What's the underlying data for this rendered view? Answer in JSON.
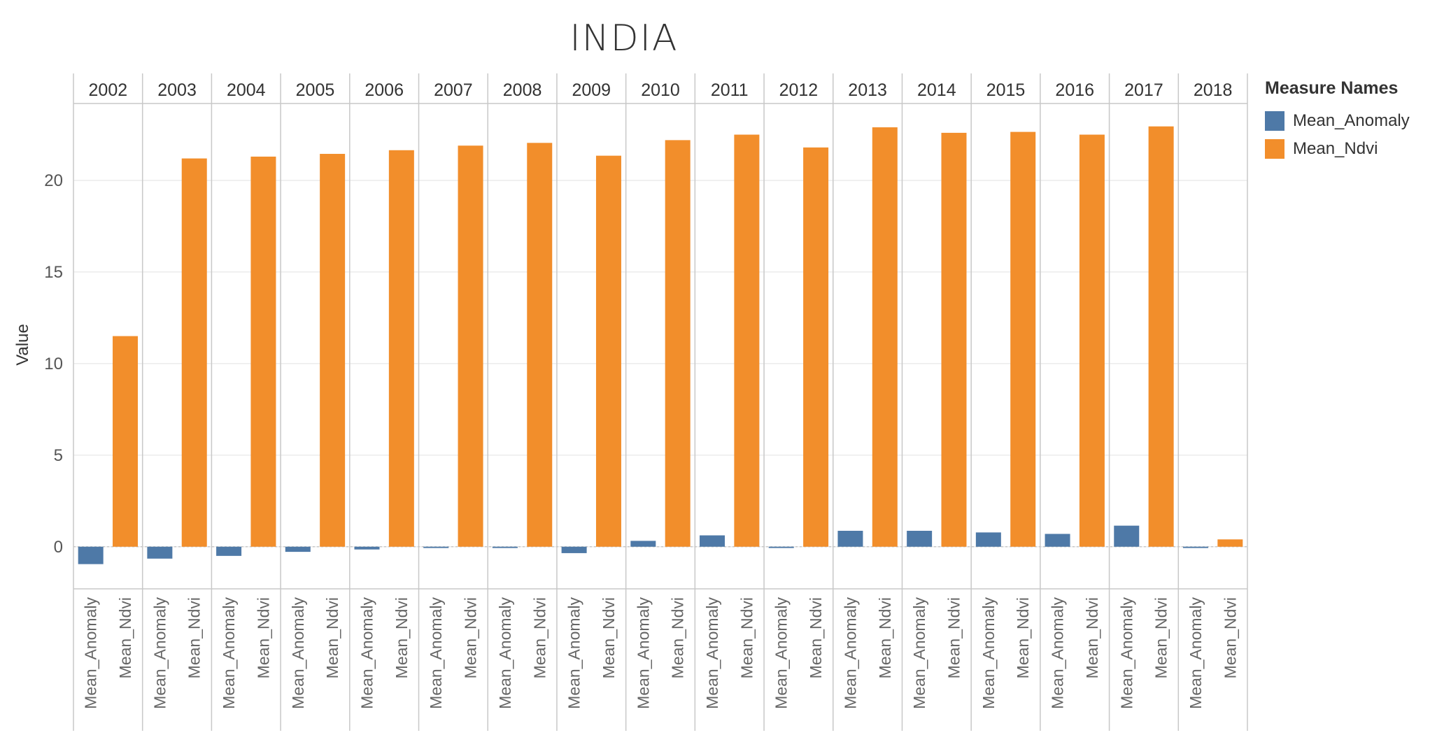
{
  "chart_data": {
    "type": "bar",
    "title": "INDIA",
    "ylabel": "Value",
    "xlabel": "",
    "ylim": [
      -2.3,
      24.2
    ],
    "yticks": [
      0,
      5,
      10,
      15,
      20
    ],
    "grid": true,
    "legend_title": "Measure Names",
    "legend_position": "right",
    "categories": [
      "2002",
      "2003",
      "2004",
      "2005",
      "2006",
      "2007",
      "2008",
      "2009",
      "2010",
      "2011",
      "2012",
      "2013",
      "2014",
      "2015",
      "2016",
      "2017",
      "2018"
    ],
    "series": [
      {
        "name": "Mean_Anomaly",
        "color": "#4e79a7",
        "values": [
          -0.95,
          -0.65,
          -0.5,
          -0.28,
          -0.15,
          -0.07,
          -0.07,
          -0.35,
          0.32,
          0.62,
          -0.07,
          0.87,
          0.87,
          0.78,
          0.7,
          1.15,
          -0.07
        ]
      },
      {
        "name": "Mean_Ndvi",
        "color": "#f28e2b",
        "values": [
          11.5,
          21.2,
          21.3,
          21.45,
          21.65,
          21.9,
          22.05,
          21.35,
          22.2,
          22.5,
          21.8,
          22.9,
          22.6,
          22.65,
          22.5,
          22.95,
          0.4
        ]
      }
    ]
  }
}
